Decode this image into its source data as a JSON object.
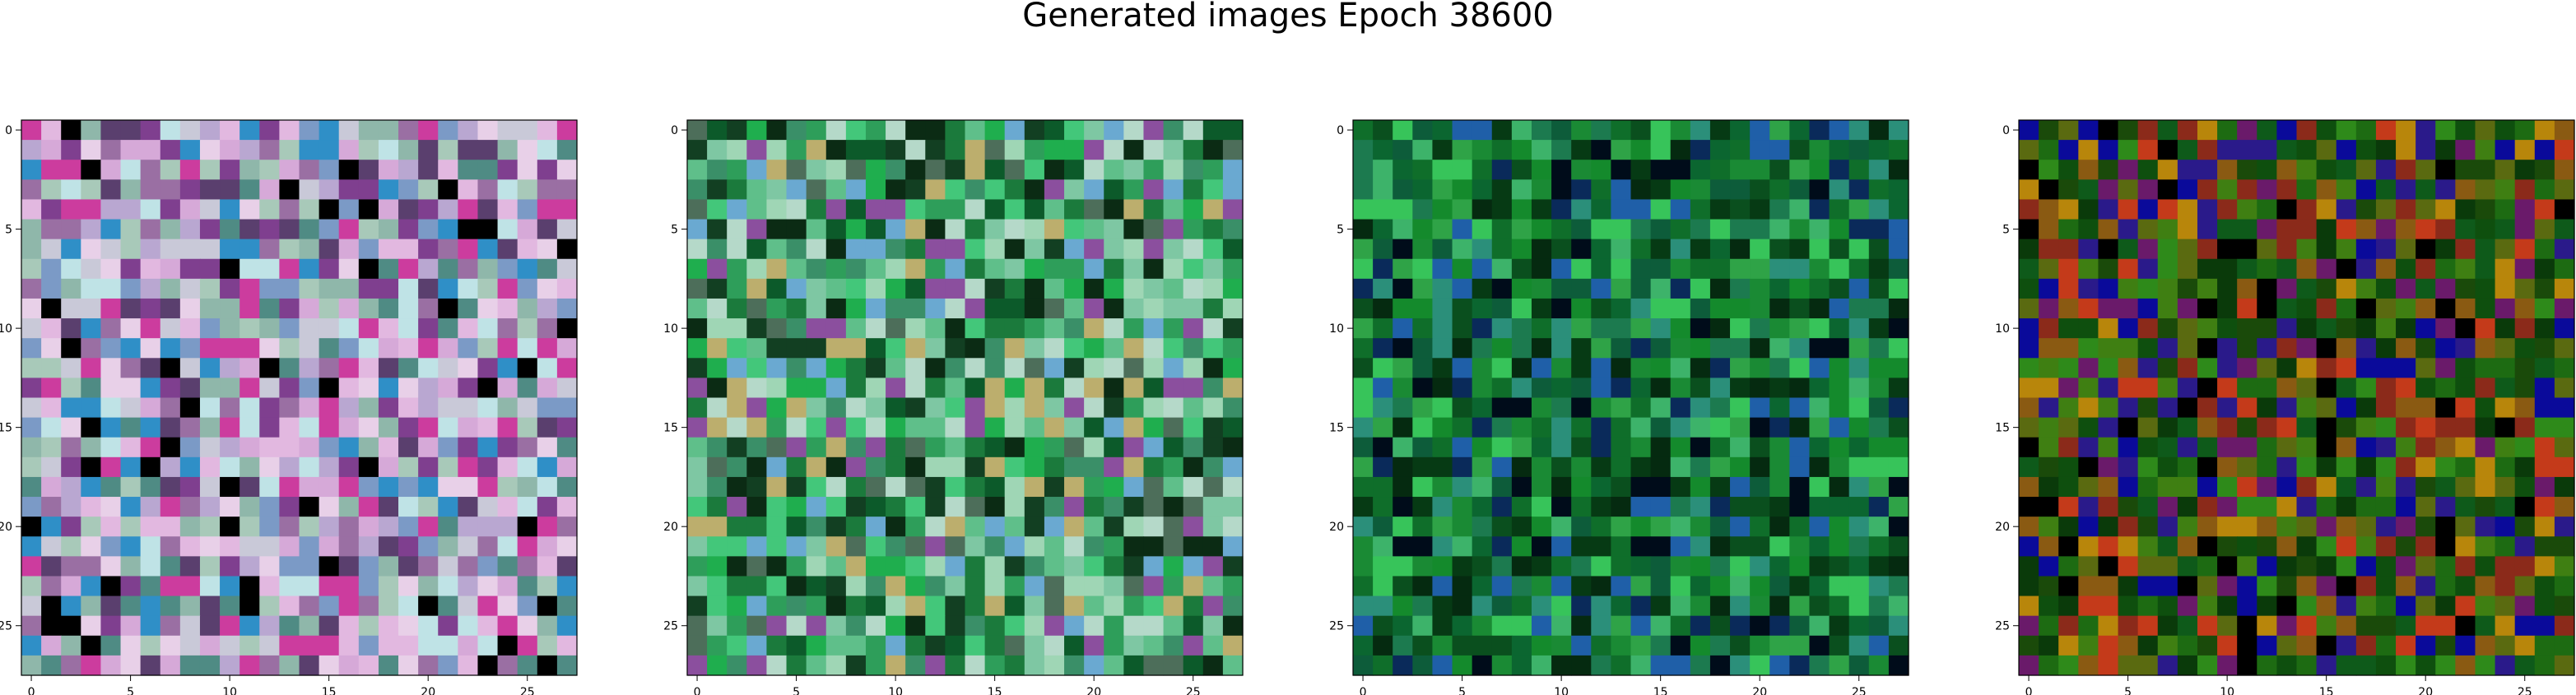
{
  "figure": {
    "title": "Generated images Epoch 38600"
  },
  "chart_data": [
    {
      "type": "heatmap",
      "title": "",
      "xlabel": "",
      "ylabel": "",
      "grid_size": 28,
      "xlim": [
        -0.5,
        27.5
      ],
      "ylim": [
        27.5,
        -0.5
      ],
      "grid": false,
      "xticks": [
        0,
        5,
        10,
        15,
        20,
        25
      ],
      "yticks": [
        0,
        5,
        10,
        15,
        20,
        25
      ],
      "palette": [
        "#b9a7d1",
        "#8fb7aa",
        "#d6a9d8",
        "#7b9ac6",
        "#c9c9d8",
        "#5a3f6e",
        "#e2b8e0",
        "#9a6fa3",
        "#4f8b84",
        "#e8d0e8",
        "#000000",
        "#cc3c9e",
        "#2f8fc7",
        "#bfe3e6",
        "#7f3f8f",
        "#a8c9b9"
      ],
      "seed": 11
    },
    {
      "type": "heatmap",
      "title": "",
      "xlabel": "",
      "ylabel": "",
      "grid_size": 28,
      "xlim": [
        -0.5,
        27.5
      ],
      "ylim": [
        27.5,
        -0.5
      ],
      "grid": false,
      "xticks": [
        0,
        5,
        10,
        15,
        20,
        25
      ],
      "yticks": [
        0,
        5,
        10,
        15,
        20,
        25
      ],
      "palette": [
        "#2e9e5a",
        "#5fbf8a",
        "#1b7a3c",
        "#9fd6b5",
        "#0c5a2a",
        "#43c77a",
        "#7ec7a3",
        "#123f22",
        "#b5d9c9",
        "#3a8f68",
        "#0b2b14",
        "#8b4f9e",
        "#bcae6d",
        "#6aa9d1",
        "#1fae4e",
        "#4d6e5a"
      ],
      "seed": 27
    },
    {
      "type": "heatmap",
      "title": "",
      "xlabel": "",
      "ylabel": "",
      "grid_size": 28,
      "xlim": [
        -0.5,
        27.5
      ],
      "ylim": [
        27.5,
        -0.5
      ],
      "grid": false,
      "xticks": [
        0,
        5,
        10,
        15,
        20,
        25
      ],
      "yticks": [
        0,
        5,
        10,
        15,
        20,
        25
      ],
      "palette": [
        "#0f6e2a",
        "#1a8a34",
        "#0a4f1e",
        "#2fa347",
        "#063a14",
        "#1c7a4f",
        "#3db36a",
        "#0d5c3a",
        "#000c1a",
        "#1f5fa8",
        "#0a2a5a",
        "#2b8f7a",
        "#148a2c",
        "#0b6630",
        "#37c45a",
        "#052a10"
      ],
      "seed": 53
    },
    {
      "type": "heatmap",
      "title": "",
      "xlabel": "",
      "ylabel": "",
      "grid_size": 28,
      "xlim": [
        -0.5,
        27.5
      ],
      "ylim": [
        27.5,
        -0.5
      ],
      "grid": false,
      "xticks": [
        0,
        5,
        10,
        15,
        20,
        25
      ],
      "yticks": [
        0,
        5,
        10,
        15,
        20,
        25
      ],
      "palette": [
        "#0e4f0e",
        "#1d6b12",
        "#0a3a0a",
        "#3f7f12",
        "#5a6a10",
        "#8a5a12",
        "#b8860b",
        "#8b2a1a",
        "#c43a1a",
        "#2a1a8a",
        "#0a0a9a",
        "#6a1a6a",
        "#0e5a1a",
        "#2e8a1a",
        "#1a4a0a",
        "#000000"
      ],
      "seed": 89
    }
  ]
}
